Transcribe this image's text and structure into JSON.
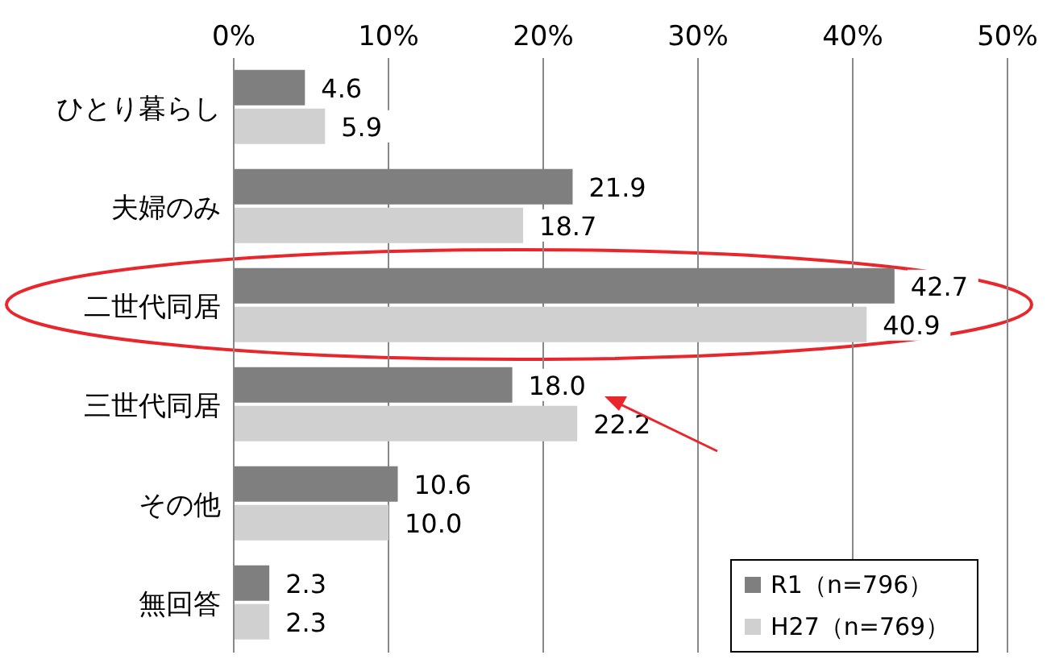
{
  "chart_data": {
    "type": "bar",
    "orientation": "horizontal",
    "categories": [
      "ひとり暮らし",
      "夫婦のみ",
      "二世代同居",
      "三世代同居",
      "その他",
      "無回答"
    ],
    "series": [
      {
        "name": "R1（n=796）",
        "color": "#7f7f7f",
        "values": [
          4.6,
          21.9,
          42.7,
          18.0,
          10.6,
          2.3
        ],
        "value_labels": [
          "4.6",
          "21.9",
          "42.7",
          "18.0",
          "10.6",
          "2.3"
        ]
      },
      {
        "name": "H27（n=769）",
        "color": "#d0d0d0",
        "values": [
          5.9,
          18.7,
          40.9,
          22.2,
          10.0,
          2.3
        ],
        "value_labels": [
          "5.9",
          "18.7",
          "40.9",
          "22.2",
          "10.0",
          "2.3"
        ]
      }
    ],
    "xlim": [
      0,
      50
    ],
    "xticks": [
      {
        "value": 0,
        "label": "0%"
      },
      {
        "value": 10,
        "label": "10%"
      },
      {
        "value": 20,
        "label": "20%"
      },
      {
        "value": 30,
        "label": "30%"
      },
      {
        "value": 40,
        "label": "40%"
      },
      {
        "value": 50,
        "label": "50%"
      }
    ],
    "grid": "x",
    "legend": "bottom right"
  }
}
